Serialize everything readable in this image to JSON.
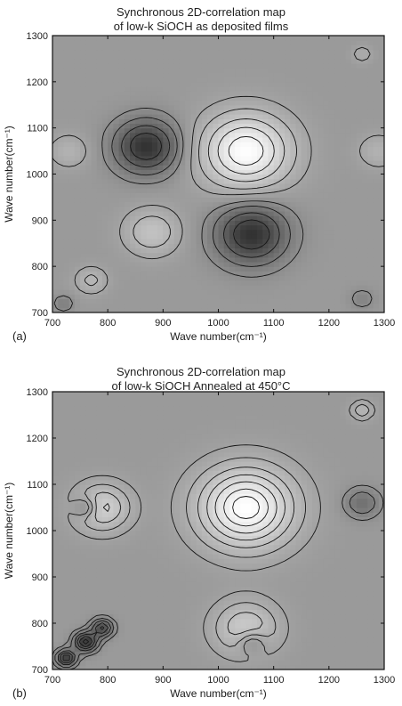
{
  "chart_data": [
    {
      "type": "heatmap",
      "panel_label": "(a)",
      "title_lines": [
        "Synchronous 2D-correlation map",
        "of low-k SiOCH as deposited films"
      ],
      "xlabel": "Wave number(cm⁻¹)",
      "ylabel": "Wave number(cm⁻¹)",
      "xlim": [
        700,
        1300
      ],
      "ylim": [
        700,
        1300
      ],
      "xticks": [
        "700",
        "800",
        "900",
        "1000",
        "1100",
        "1200",
        "1300"
      ],
      "yticks": [
        "700",
        "800",
        "900",
        "1000",
        "1100",
        "1200",
        "1300"
      ],
      "background": "#9a9a9a",
      "features": [
        {
          "x": 1050,
          "y": 1050,
          "amplitude": 1.0,
          "sigma": 55,
          "sign": "positive"
        },
        {
          "x": 1060,
          "y": 870,
          "amplitude": 0.85,
          "sigma": 45,
          "sign": "negative"
        },
        {
          "x": 870,
          "y": 1060,
          "amplitude": 0.85,
          "sigma": 40,
          "sign": "negative"
        },
        {
          "x": 880,
          "y": 875,
          "amplitude": 0.4,
          "sigma": 35,
          "sign": "positive"
        },
        {
          "x": 770,
          "y": 770,
          "amplitude": 0.3,
          "sigma": 20,
          "sign": "positive"
        },
        {
          "x": 720,
          "y": 720,
          "amplitude": 0.25,
          "sigma": 12,
          "sign": "negative"
        },
        {
          "x": 1260,
          "y": 1260,
          "amplitude": 0.2,
          "sigma": 12,
          "sign": "positive"
        },
        {
          "x": 1260,
          "y": 730,
          "amplitude": 0.2,
          "sigma": 15,
          "sign": "negative"
        },
        {
          "x": 730,
          "y": 1050,
          "amplitude": 0.25,
          "sigma": 25,
          "sign": "positive"
        },
        {
          "x": 1290,
          "y": 1050,
          "amplitude": 0.25,
          "sigma": 25,
          "sign": "positive"
        }
      ],
      "contour_levels": [
        0.1,
        0.25,
        0.45,
        0.65,
        0.85
      ]
    },
    {
      "type": "heatmap",
      "panel_label": "(b)",
      "title_lines": [
        "Synchronous 2D-correlation map",
        "of low-k SiOCH Annealed at 450°C"
      ],
      "xlabel": "Wave number(cm⁻¹)",
      "ylabel": "Wave number(cm⁻¹)",
      "xlim": [
        700,
        1300
      ],
      "ylim": [
        700,
        1300
      ],
      "xticks": [
        "700",
        "800",
        "900",
        "1000",
        "1100",
        "1200",
        "1300"
      ],
      "yticks": [
        "700",
        "800",
        "900",
        "1000",
        "1100",
        "1200",
        "1300"
      ],
      "background": "#9a9a9a",
      "features": [
        {
          "x": 1050,
          "y": 1050,
          "amplitude": 1.0,
          "sigma": 60,
          "sign": "positive"
        },
        {
          "x": 790,
          "y": 1050,
          "amplitude": 0.55,
          "sigma": 35,
          "sign": "positive"
        },
        {
          "x": 1050,
          "y": 790,
          "amplitude": 0.5,
          "sigma": 40,
          "sign": "positive"
        },
        {
          "x": 760,
          "y": 760,
          "amplitude": 0.9,
          "sigma": 14,
          "sign": "negative"
        },
        {
          "x": 725,
          "y": 725,
          "amplitude": 0.8,
          "sigma": 12,
          "sign": "negative"
        },
        {
          "x": 790,
          "y": 790,
          "amplitude": 0.7,
          "sigma": 13,
          "sign": "negative"
        },
        {
          "x": 1260,
          "y": 1260,
          "amplitude": 0.3,
          "sigma": 14,
          "sign": "positive"
        },
        {
          "x": 1260,
          "y": 1060,
          "amplitude": 0.35,
          "sigma": 22,
          "sign": "negative"
        },
        {
          "x": 760,
          "y": 1050,
          "amplitude": 0.4,
          "sigma": 15,
          "sign": "negative"
        },
        {
          "x": 1060,
          "y": 760,
          "amplitude": 0.35,
          "sigma": 18,
          "sign": "negative"
        }
      ],
      "contour_levels": [
        0.08,
        0.2,
        0.35,
        0.5,
        0.65,
        0.8,
        0.92
      ]
    }
  ]
}
